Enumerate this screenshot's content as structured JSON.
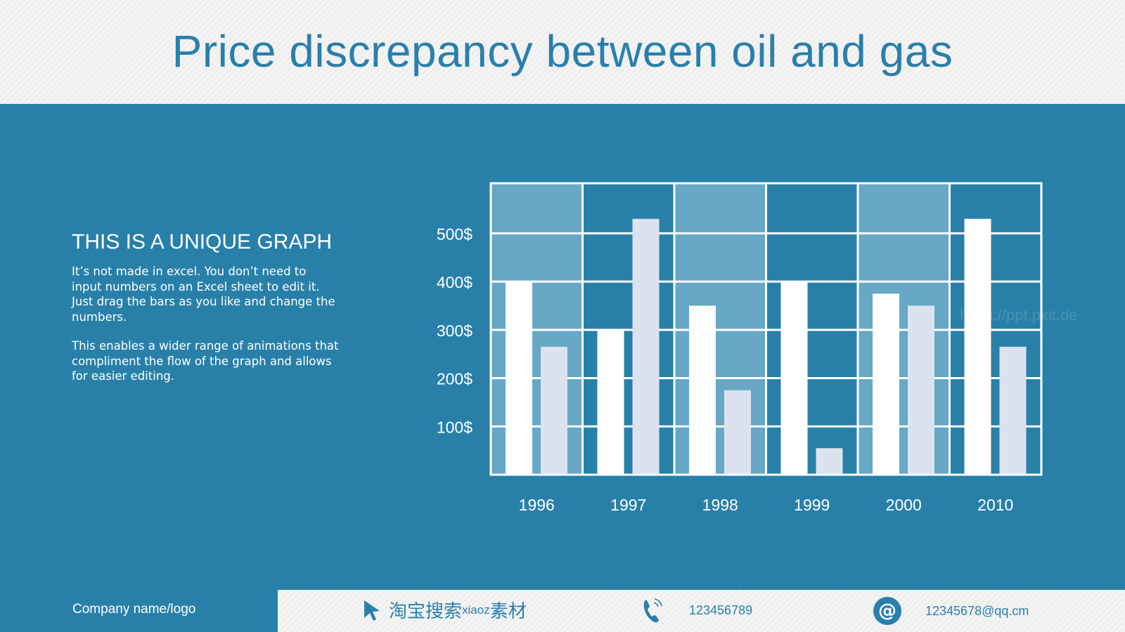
{
  "title": "Price discrepancy between oil and gas",
  "left_panel": {
    "heading": "THIS IS A UNIQUE GRAPH",
    "paragraph1": "It’s not made in excel. You don’t need to input numbers on an Excel sheet to edit it. Just drag the bars as you like and change the  numbers.",
    "paragraph2": "This enables a wider range of animations that compliment the flow of the graph and allows for easier editing."
  },
  "footer": {
    "company": "Company name/logo",
    "taobao_text": "淘宝搜索",
    "taobao_latin": "xiaoz",
    "taobao_suffix": "素材",
    "phone": "123456789",
    "email": "12345678@qq.cm",
    "icons": [
      "cursor-icon",
      "phone-icon",
      "at-icon"
    ]
  },
  "watermark": "https://ppt.pkit.de",
  "colors": {
    "background": "#2880a8",
    "title": "#2a7fab",
    "cell_light": "#66a8c5",
    "bar_primary": "#ffffff",
    "bar_secondary": "#dbe3ef"
  },
  "chart_data": {
    "type": "bar",
    "categories": [
      "1996",
      "1997",
      "1998",
      "1999",
      "2000",
      "2010"
    ],
    "series": [
      {
        "values": [
          400,
          300,
          350,
          400,
          375,
          530
        ]
      },
      {
        "values": [
          265,
          530,
          175,
          55,
          350,
          265
        ]
      }
    ],
    "y_ticks": [
      "100$",
      "200$",
      "300$",
      "400$",
      "500$"
    ],
    "ylim": [
      0,
      600
    ],
    "grid": true
  }
}
